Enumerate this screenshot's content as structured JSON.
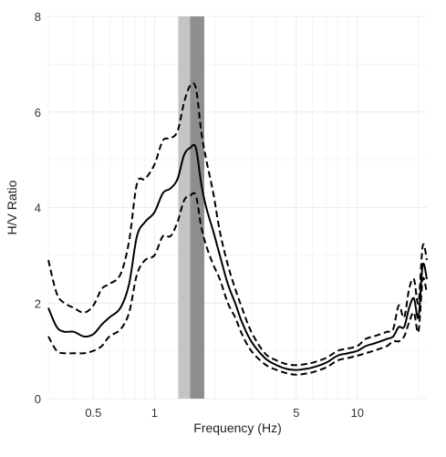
{
  "chart_data": {
    "type": "line",
    "title": "",
    "xlabel": "Frequency (Hz)",
    "ylabel": "H/V Ratio",
    "x_scale": "log",
    "xlim": [
      0.3,
      22
    ],
    "ylim": [
      0,
      8
    ],
    "x_ticks": [
      {
        "value": 0.5,
        "label": "0.5"
      },
      {
        "value": 1,
        "label": "1"
      },
      {
        "value": 5,
        "label": "5"
      },
      {
        "value": 10,
        "label": "10"
      }
    ],
    "y_ticks": [
      {
        "value": 0,
        "label": "0"
      },
      {
        "value": 2,
        "label": "2"
      },
      {
        "value": 4,
        "label": "4"
      },
      {
        "value": 6,
        "label": "6"
      },
      {
        "value": 8,
        "label": "8"
      }
    ],
    "grid": true,
    "peak_bands": [
      {
        "x0": 1.31,
        "x1": 1.76,
        "color": "#c4c4c4"
      },
      {
        "x0": 1.5,
        "x1": 1.76,
        "color": "#8e8e8e"
      }
    ],
    "series": [
      {
        "style": "solid",
        "color": "#000000",
        "points": [
          [
            0.3,
            1.9
          ],
          [
            0.33,
            1.5
          ],
          [
            0.36,
            1.4
          ],
          [
            0.4,
            1.4
          ],
          [
            0.45,
            1.3
          ],
          [
            0.5,
            1.35
          ],
          [
            0.55,
            1.55
          ],
          [
            0.6,
            1.7
          ],
          [
            0.68,
            1.9
          ],
          [
            0.75,
            2.4
          ],
          [
            0.82,
            3.4
          ],
          [
            0.9,
            3.7
          ],
          [
            1.0,
            3.9
          ],
          [
            1.1,
            4.3
          ],
          [
            1.2,
            4.4
          ],
          [
            1.3,
            4.6
          ],
          [
            1.4,
            5.1
          ],
          [
            1.5,
            5.25
          ],
          [
            1.6,
            5.25
          ],
          [
            1.7,
            4.5
          ],
          [
            1.8,
            4.0
          ],
          [
            1.95,
            3.5
          ],
          [
            2.1,
            3.0
          ],
          [
            2.3,
            2.4
          ],
          [
            2.5,
            2.0
          ],
          [
            2.7,
            1.6
          ],
          [
            3.0,
            1.2
          ],
          [
            3.5,
            0.85
          ],
          [
            4.0,
            0.7
          ],
          [
            4.5,
            0.62
          ],
          [
            5.0,
            0.6
          ],
          [
            5.5,
            0.62
          ],
          [
            6.0,
            0.65
          ],
          [
            7.0,
            0.75
          ],
          [
            8.0,
            0.9
          ],
          [
            9.0,
            0.95
          ],
          [
            10.0,
            1.0
          ],
          [
            11.0,
            1.1
          ],
          [
            12.0,
            1.15
          ],
          [
            13.0,
            1.2
          ],
          [
            14.0,
            1.25
          ],
          [
            15.0,
            1.3
          ],
          [
            16.0,
            1.5
          ],
          [
            17.0,
            1.5
          ],
          [
            18.0,
            1.9
          ],
          [
            19.0,
            2.1
          ],
          [
            20.0,
            1.7
          ],
          [
            21.0,
            2.8
          ],
          [
            22.0,
            2.5
          ]
        ]
      },
      {
        "style": "dashed",
        "color": "#000000",
        "points": [
          [
            0.3,
            2.9
          ],
          [
            0.33,
            2.2
          ],
          [
            0.36,
            2.0
          ],
          [
            0.4,
            1.9
          ],
          [
            0.45,
            1.8
          ],
          [
            0.5,
            1.95
          ],
          [
            0.55,
            2.3
          ],
          [
            0.6,
            2.4
          ],
          [
            0.68,
            2.6
          ],
          [
            0.75,
            3.3
          ],
          [
            0.82,
            4.5
          ],
          [
            0.9,
            4.6
          ],
          [
            1.0,
            4.9
          ],
          [
            1.1,
            5.4
          ],
          [
            1.2,
            5.45
          ],
          [
            1.3,
            5.6
          ],
          [
            1.4,
            6.2
          ],
          [
            1.5,
            6.55
          ],
          [
            1.6,
            6.5
          ],
          [
            1.7,
            5.6
          ],
          [
            1.8,
            5.0
          ],
          [
            1.95,
            4.3
          ],
          [
            2.1,
            3.5
          ],
          [
            2.3,
            2.8
          ],
          [
            2.5,
            2.3
          ],
          [
            2.7,
            1.9
          ],
          [
            3.0,
            1.4
          ],
          [
            3.5,
            0.95
          ],
          [
            4.0,
            0.8
          ],
          [
            4.5,
            0.72
          ],
          [
            5.0,
            0.7
          ],
          [
            5.5,
            0.72
          ],
          [
            6.0,
            0.75
          ],
          [
            7.0,
            0.85
          ],
          [
            8.0,
            1.0
          ],
          [
            9.0,
            1.05
          ],
          [
            10.0,
            1.1
          ],
          [
            11.0,
            1.25
          ],
          [
            12.0,
            1.3
          ],
          [
            13.0,
            1.35
          ],
          [
            14.0,
            1.4
          ],
          [
            15.0,
            1.45
          ],
          [
            16.0,
            1.95
          ],
          [
            17.0,
            1.7
          ],
          [
            18.0,
            2.3
          ],
          [
            19.0,
            2.5
          ],
          [
            20.0,
            2.0
          ],
          [
            21.0,
            3.2
          ],
          [
            22.0,
            2.9
          ]
        ]
      },
      {
        "style": "dashed",
        "color": "#000000",
        "points": [
          [
            0.3,
            1.3
          ],
          [
            0.33,
            1.0
          ],
          [
            0.36,
            0.95
          ],
          [
            0.4,
            0.95
          ],
          [
            0.45,
            0.95
          ],
          [
            0.5,
            1.0
          ],
          [
            0.55,
            1.1
          ],
          [
            0.6,
            1.3
          ],
          [
            0.68,
            1.45
          ],
          [
            0.75,
            1.8
          ],
          [
            0.82,
            2.6
          ],
          [
            0.9,
            2.9
          ],
          [
            1.0,
            3.0
          ],
          [
            1.1,
            3.4
          ],
          [
            1.2,
            3.4
          ],
          [
            1.3,
            3.7
          ],
          [
            1.4,
            4.15
          ],
          [
            1.5,
            4.25
          ],
          [
            1.6,
            4.25
          ],
          [
            1.7,
            3.6
          ],
          [
            1.8,
            3.2
          ],
          [
            1.95,
            2.8
          ],
          [
            2.1,
            2.5
          ],
          [
            2.3,
            2.0
          ],
          [
            2.5,
            1.7
          ],
          [
            2.7,
            1.35
          ],
          [
            3.0,
            1.0
          ],
          [
            3.5,
            0.72
          ],
          [
            4.0,
            0.6
          ],
          [
            4.5,
            0.53
          ],
          [
            5.0,
            0.5
          ],
          [
            5.5,
            0.52
          ],
          [
            6.0,
            0.55
          ],
          [
            7.0,
            0.65
          ],
          [
            8.0,
            0.8
          ],
          [
            9.0,
            0.85
          ],
          [
            10.0,
            0.9
          ],
          [
            11.0,
            0.95
          ],
          [
            12.0,
            1.0
          ],
          [
            13.0,
            1.05
          ],
          [
            14.0,
            1.1
          ],
          [
            15.0,
            1.2
          ],
          [
            16.0,
            1.2
          ],
          [
            17.0,
            1.3
          ],
          [
            18.0,
            1.6
          ],
          [
            19.0,
            1.8
          ],
          [
            20.0,
            1.4
          ],
          [
            21.0,
            2.5
          ],
          [
            22.0,
            2.2
          ]
        ]
      }
    ]
  }
}
